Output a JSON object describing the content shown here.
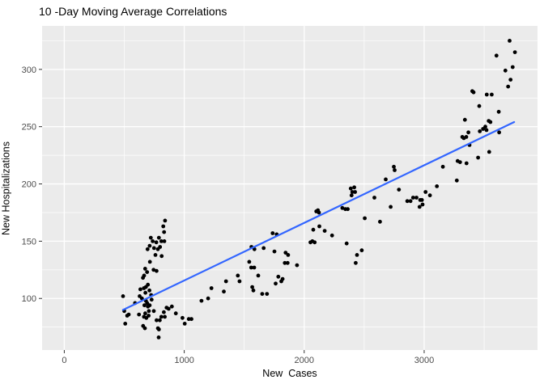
{
  "chart_data": {
    "type": "scatter",
    "title": "10 -Day Moving Average Correlations",
    "xlabel": "New  Cases",
    "ylabel": "New Hospitalizations",
    "legend": "none",
    "grid": true,
    "xlim": [
      -185,
      3945
    ],
    "ylim": [
      55,
      338
    ],
    "x_ticks": [
      0,
      1000,
      2000,
      3000
    ],
    "x_minor_ticks": [
      500,
      1500,
      2500,
      3500
    ],
    "y_ticks": [
      100,
      150,
      200,
      250,
      300
    ],
    "y_minor_ticks": [
      75,
      125,
      175,
      225,
      275,
      325
    ],
    "colors": {
      "panel_bg": "#EBEBEB",
      "grid": "#FFFFFF",
      "point": "#000000",
      "trend": "#3366FF",
      "tick_label": "#4D4D4D",
      "tick_mark": "#333333"
    },
    "trend_line": {
      "type": "linear",
      "x1": 489,
      "y1": 90,
      "x2": 3750,
      "y2": 254
    },
    "points": [
      [
        490,
        102
      ],
      [
        500,
        89
      ],
      [
        508,
        78
      ],
      [
        524,
        85
      ],
      [
        537,
        86
      ],
      [
        590,
        96
      ],
      [
        623,
        86
      ],
      [
        628,
        102
      ],
      [
        634,
        108
      ],
      [
        647,
        100
      ],
      [
        656,
        118
      ],
      [
        657,
        76
      ],
      [
        664,
        109
      ],
      [
        664,
        84
      ],
      [
        665,
        120
      ],
      [
        668,
        94
      ],
      [
        672,
        74
      ],
      [
        674,
        126
      ],
      [
        675,
        87
      ],
      [
        676,
        105
      ],
      [
        680,
        110
      ],
      [
        680,
        98
      ],
      [
        684,
        83
      ],
      [
        690,
        123
      ],
      [
        691,
        96
      ],
      [
        694,
        143
      ],
      [
        697,
        112
      ],
      [
        697,
        93
      ],
      [
        703,
        85
      ],
      [
        705,
        89
      ],
      [
        710,
        107
      ],
      [
        712,
        146
      ],
      [
        712,
        94
      ],
      [
        714,
        132
      ],
      [
        721,
        153
      ],
      [
        724,
        103
      ],
      [
        728,
        99
      ],
      [
        737,
        150
      ],
      [
        744,
        125
      ],
      [
        746,
        89
      ],
      [
        748,
        144
      ],
      [
        760,
        138
      ],
      [
        767,
        149
      ],
      [
        769,
        124
      ],
      [
        769,
        81
      ],
      [
        780,
        143
      ],
      [
        781,
        74
      ],
      [
        787,
        66
      ],
      [
        789,
        153
      ],
      [
        789,
        73
      ],
      [
        796,
        81
      ],
      [
        798,
        145
      ],
      [
        809,
        150
      ],
      [
        809,
        84
      ],
      [
        812,
        137
      ],
      [
        825,
        163
      ],
      [
        830,
        88
      ],
      [
        832,
        158
      ],
      [
        834,
        150
      ],
      [
        838,
        84
      ],
      [
        840,
        168
      ],
      [
        853,
        92
      ],
      [
        870,
        91
      ],
      [
        897,
        93
      ],
      [
        930,
        87
      ],
      [
        985,
        83
      ],
      [
        1004,
        78
      ],
      [
        1038,
        82
      ],
      [
        1060,
        82
      ],
      [
        1144,
        98
      ],
      [
        1199,
        100
      ],
      [
        1227,
        109
      ],
      [
        1330,
        106
      ],
      [
        1348,
        115
      ],
      [
        1447,
        120
      ],
      [
        1461,
        115
      ],
      [
        1542,
        132
      ],
      [
        1558,
        127
      ],
      [
        1560,
        145
      ],
      [
        1567,
        110
      ],
      [
        1576,
        107
      ],
      [
        1583,
        127
      ],
      [
        1585,
        143
      ],
      [
        1617,
        120
      ],
      [
        1650,
        104
      ],
      [
        1662,
        144
      ],
      [
        1690,
        104
      ],
      [
        1737,
        157
      ],
      [
        1752,
        141
      ],
      [
        1762,
        113
      ],
      [
        1771,
        156
      ],
      [
        1784,
        119
      ],
      [
        1809,
        115
      ],
      [
        1820,
        117
      ],
      [
        1838,
        131
      ],
      [
        1845,
        140
      ],
      [
        1862,
        131
      ],
      [
        1866,
        138
      ],
      [
        1940,
        129
      ],
      [
        2052,
        149
      ],
      [
        2068,
        150
      ],
      [
        2076,
        160
      ],
      [
        2087,
        149
      ],
      [
        2101,
        176
      ],
      [
        2114,
        177
      ],
      [
        2123,
        175
      ],
      [
        2126,
        163
      ],
      [
        2171,
        159
      ],
      [
        2232,
        155
      ],
      [
        2318,
        179
      ],
      [
        2343,
        178
      ],
      [
        2354,
        148
      ],
      [
        2363,
        178
      ],
      [
        2388,
        196
      ],
      [
        2395,
        190
      ],
      [
        2401,
        193
      ],
      [
        2417,
        197
      ],
      [
        2424,
        193
      ],
      [
        2429,
        131
      ],
      [
        2440,
        138
      ],
      [
        2480,
        142
      ],
      [
        2505,
        170
      ],
      [
        2585,
        188
      ],
      [
        2632,
        167
      ],
      [
        2680,
        204
      ],
      [
        2721,
        180
      ],
      [
        2747,
        215
      ],
      [
        2754,
        212
      ],
      [
        2790,
        195
      ],
      [
        2859,
        185
      ],
      [
        2886,
        185
      ],
      [
        2908,
        188
      ],
      [
        2936,
        188
      ],
      [
        2962,
        180
      ],
      [
        2967,
        186
      ],
      [
        2981,
        186
      ],
      [
        2987,
        182
      ],
      [
        3012,
        193
      ],
      [
        3048,
        190
      ],
      [
        3106,
        198
      ],
      [
        3156,
        215
      ],
      [
        3272,
        203
      ],
      [
        3279,
        220
      ],
      [
        3299,
        219
      ],
      [
        3318,
        241
      ],
      [
        3331,
        240
      ],
      [
        3340,
        256
      ],
      [
        3351,
        241
      ],
      [
        3353,
        218
      ],
      [
        3369,
        245
      ],
      [
        3378,
        234
      ],
      [
        3401,
        281
      ],
      [
        3412,
        280
      ],
      [
        3450,
        223
      ],
      [
        3459,
        268
      ],
      [
        3464,
        246
      ],
      [
        3491,
        248
      ],
      [
        3510,
        250
      ],
      [
        3520,
        247
      ],
      [
        3522,
        278
      ],
      [
        3538,
        255
      ],
      [
        3542,
        228
      ],
      [
        3552,
        254
      ],
      [
        3563,
        278
      ],
      [
        3603,
        312
      ],
      [
        3622,
        263
      ],
      [
        3625,
        245
      ],
      [
        3677,
        299
      ],
      [
        3700,
        285
      ],
      [
        3712,
        325
      ],
      [
        3720,
        291
      ],
      [
        3738,
        302
      ],
      [
        3757,
        315
      ]
    ]
  }
}
